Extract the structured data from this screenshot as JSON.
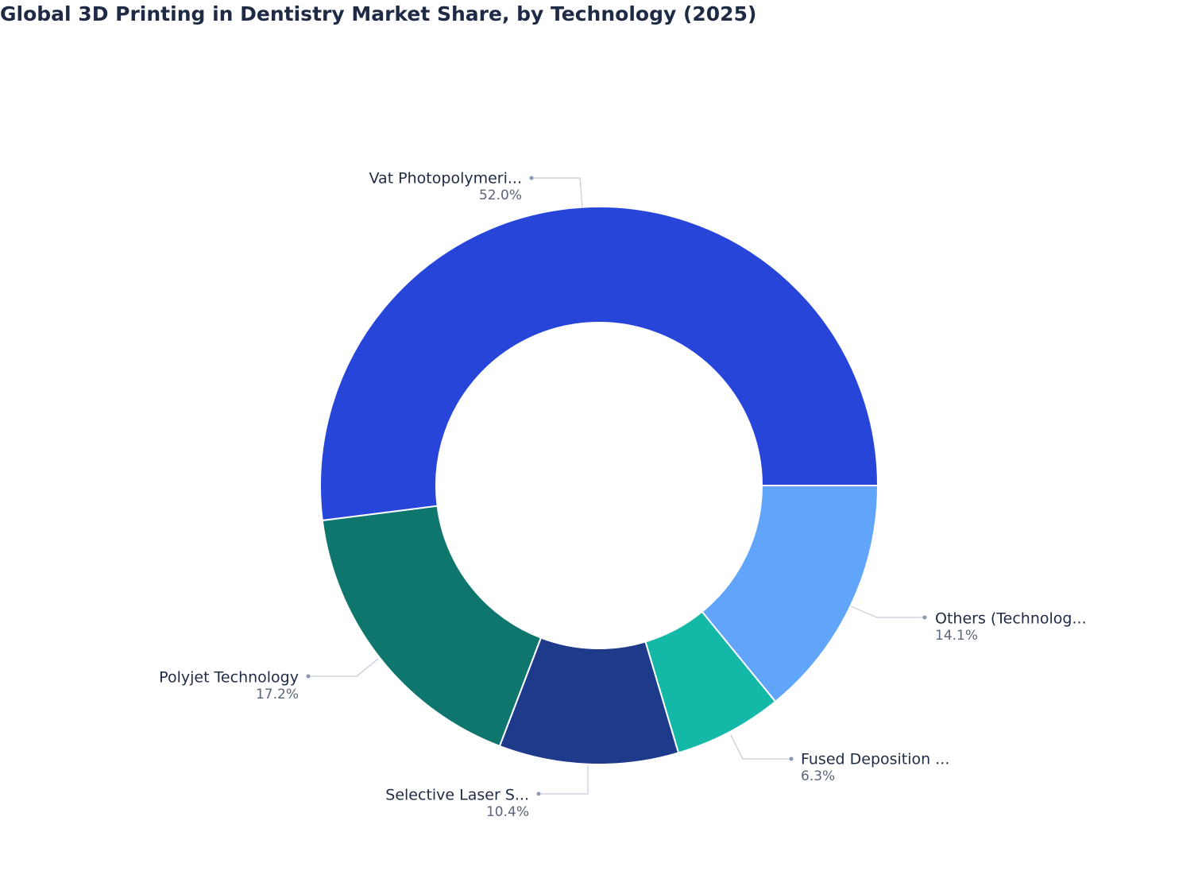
{
  "chart_data": {
    "type": "donut",
    "title": "Global 3D Printing in Dentistry Market Share, by Technology (2025)",
    "categories": [
      "Vat Photopolymeri...",
      "Others (Technolog...",
      "Fused Deposition ...",
      "Selective Laser S...",
      "Polyjet Technology"
    ],
    "values": [
      52.0,
      14.1,
      6.3,
      10.4,
      17.2
    ],
    "value_labels": [
      "52.0%",
      "14.1%",
      "6.3%",
      "10.4%",
      "17.2%"
    ],
    "colors": [
      "#2845d9",
      "#60a5fa",
      "#14b8a6",
      "#1e3a8a",
      "#0f766e"
    ]
  }
}
